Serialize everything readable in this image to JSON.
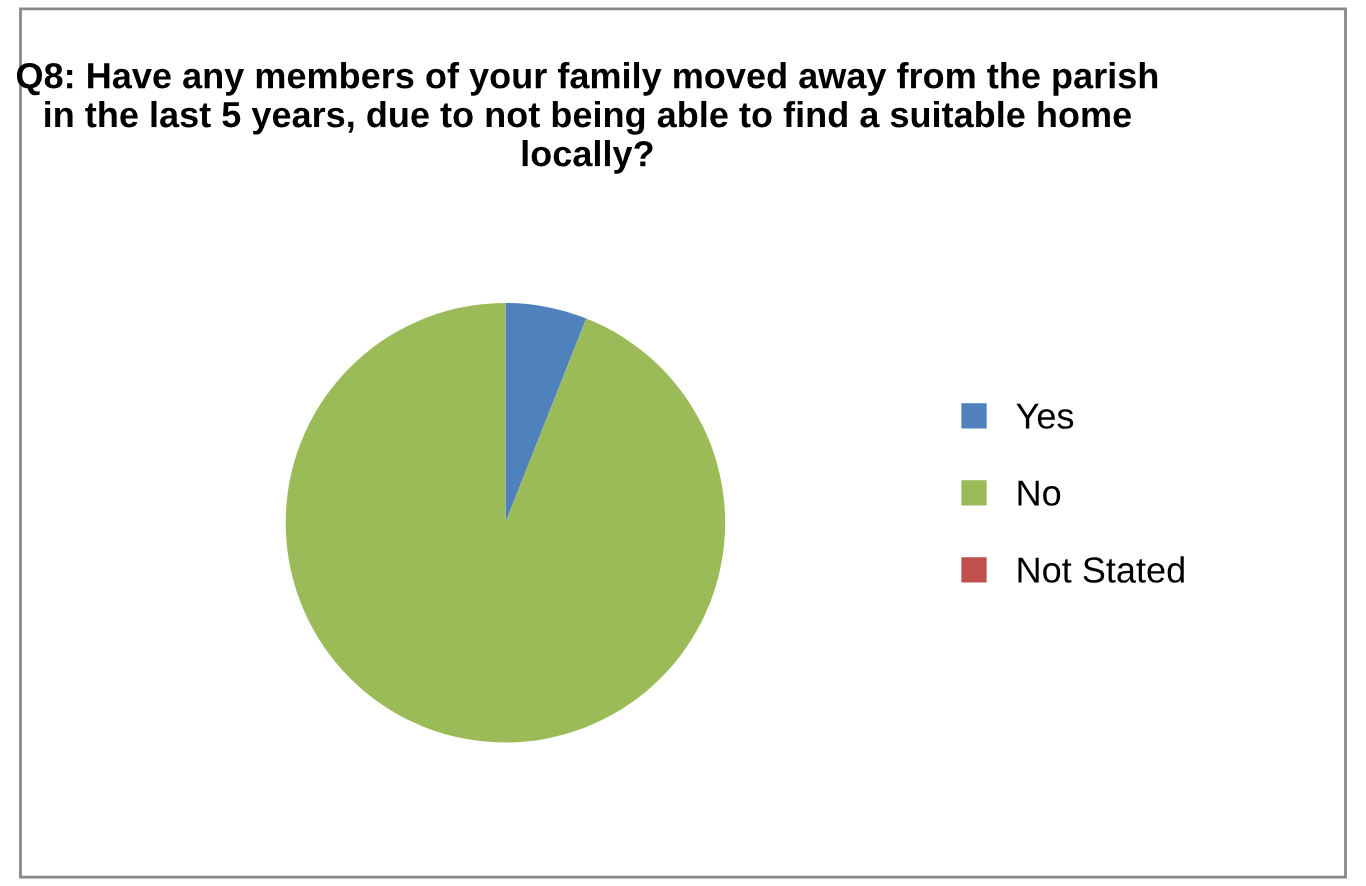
{
  "chart_data": {
    "type": "pie",
    "title": "Q8: Have any members of your family moved away from the parish in the last 5 years, due to not being able to find a suitable home locally?",
    "categories": [
      "Yes",
      "No",
      "Not Stated"
    ],
    "values": [
      6,
      94,
      0
    ],
    "colors": [
      "#4f81bd",
      "#9bbb59",
      "#c0504d"
    ],
    "legend": "right"
  }
}
